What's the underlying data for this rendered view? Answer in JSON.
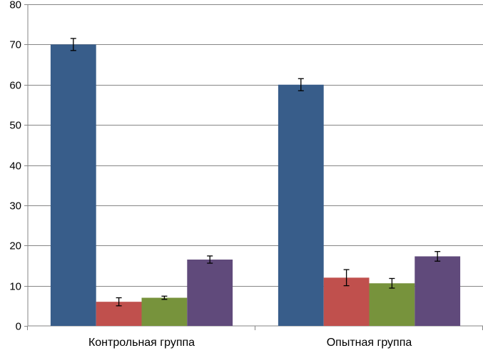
{
  "chart_data": {
    "type": "bar",
    "title": "",
    "xlabel": "",
    "ylabel": "",
    "ylim": [
      0,
      80
    ],
    "yticks": [
      0,
      10,
      20,
      30,
      40,
      50,
      60,
      70,
      80
    ],
    "grid": true,
    "categories": [
      "Контрольная группа",
      "Опытная группа"
    ],
    "series": [
      {
        "color": "#385d8a",
        "values": [
          70,
          60
        ],
        "errors": [
          1.5,
          1.5
        ]
      },
      {
        "color": "#c0504d",
        "values": [
          6,
          12
        ],
        "errors": [
          1.0,
          2.0
        ]
      },
      {
        "color": "#77933c",
        "values": [
          7,
          10.6
        ],
        "errors": [
          0.4,
          1.2
        ]
      },
      {
        "color": "#604a7b",
        "values": [
          16.5,
          17.3
        ],
        "errors": [
          0.9,
          1.2
        ]
      }
    ]
  }
}
